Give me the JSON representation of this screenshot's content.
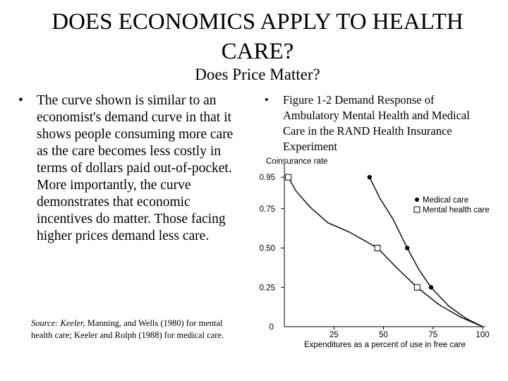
{
  "slide": {
    "title_line1": "DOES ECONOMICS APPLY TO HEALTH",
    "title_line2": "CARE?",
    "subtitle": "Does Price Matter?",
    "left_bullet_marker": "•",
    "left_bullet": "The curve shown is similar to an economist's demand curve in that it shows people consuming more care as the care becomes less costly in terms of dollars paid out-of-pocket. More importantly, the curve demonstrates that economic incentives do matter. Those facing higher prices demand less care.",
    "right_bullet_marker": "•",
    "right_bullet": "Figure 1-2 Demand Response of Ambulatory Mental Health and Medical Care in the RAND Health Insurance Experiment",
    "source_italic": "Source: Keeler,",
    "source_rest": " Manning, and Wells (1980) for mental health care; Keeler and Rolph (1988) for medical care."
  },
  "chart_data": {
    "type": "scatter",
    "ylabel": "Coinsurance rate",
    "xlabel": "Expenditures as a percent of use in free care",
    "xlim": [
      0,
      100
    ],
    "ylim": [
      0,
      1
    ],
    "x_ticks": [
      25,
      50,
      75,
      100
    ],
    "y_ticks": [
      0.25,
      0.5,
      0.75,
      0.95
    ],
    "x_tick_labels": [
      "25",
      "50",
      "75",
      "100"
    ],
    "y_tick_labels": [
      "0.25",
      "0.50",
      "0.75",
      "0.95"
    ],
    "origin_label": "0",
    "grid": false,
    "legend": "right",
    "series": [
      {
        "name": "Medical care",
        "marker": "filled-circle",
        "points": [
          [
            43,
            0.95
          ],
          [
            62,
            0.5
          ],
          [
            74,
            0.25
          ]
        ],
        "curve": [
          [
            43,
            0.95
          ],
          [
            48,
            0.82
          ],
          [
            55,
            0.68
          ],
          [
            62,
            0.5
          ],
          [
            68,
            0.36
          ],
          [
            74,
            0.25
          ],
          [
            83,
            0.13
          ],
          [
            92,
            0.05
          ],
          [
            100,
            0
          ]
        ]
      },
      {
        "name": "Mental health care",
        "marker": "open-square",
        "points": [
          [
            2,
            0.95
          ],
          [
            47,
            0.5
          ],
          [
            67,
            0.25
          ]
        ],
        "curve": [
          [
            2,
            0.95
          ],
          [
            6,
            0.86
          ],
          [
            13,
            0.76
          ],
          [
            22,
            0.66
          ],
          [
            33,
            0.6
          ],
          [
            47,
            0.5
          ],
          [
            57,
            0.37
          ],
          [
            67,
            0.25
          ],
          [
            78,
            0.14
          ],
          [
            89,
            0.06
          ],
          [
            100,
            0
          ]
        ]
      }
    ]
  }
}
